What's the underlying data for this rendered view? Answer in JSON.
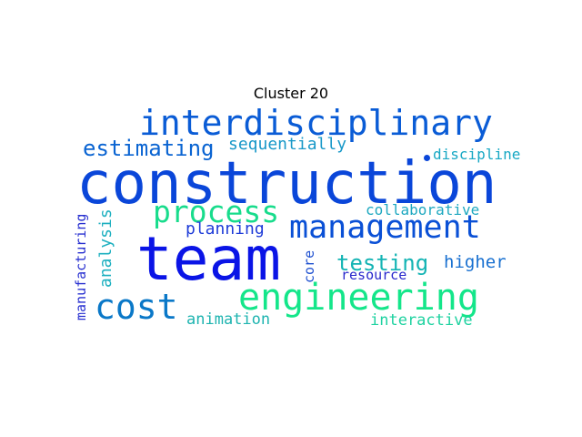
{
  "title": "Cluster 20",
  "words": [
    {
      "text": "construction",
      "color": "#0a46d9",
      "vertical": false
    },
    {
      "text": "team",
      "color": "#0a14e6",
      "vertical": false
    },
    {
      "text": "interdisciplinary",
      "color": "#0a5cd6",
      "vertical": false
    },
    {
      "text": "engineering",
      "color": "#14e68a",
      "vertical": false
    },
    {
      "text": "management",
      "color": "#0a50d6",
      "vertical": false
    },
    {
      "text": "process",
      "color": "#18dc8c",
      "vertical": false
    },
    {
      "text": "cost",
      "color": "#0a78c8",
      "vertical": false
    },
    {
      "text": "estimating",
      "color": "#0a64d2",
      "vertical": false
    },
    {
      "text": "sequentially",
      "color": "#1898c8",
      "vertical": false
    },
    {
      "text": "testing",
      "color": "#14b4b4",
      "vertical": false
    },
    {
      "text": "higher",
      "color": "#1870d0",
      "vertical": false
    },
    {
      "text": "planning",
      "color": "#1e3cd8",
      "vertical": false
    },
    {
      "text": "discipline",
      "color": "#18a8c4",
      "vertical": false
    },
    {
      "text": "collaborative",
      "color": "#1ea8c0",
      "vertical": false
    },
    {
      "text": "animation",
      "color": "#1eb4b0",
      "vertical": false
    },
    {
      "text": "interactive",
      "color": "#1ed2a0",
      "vertical": false
    },
    {
      "text": "resource",
      "color": "#2828cc",
      "vertical": false
    },
    {
      "text": "analysis",
      "color": "#1eb0c0",
      "vertical": true
    },
    {
      "text": "manufacturing",
      "color": "#2830d0",
      "vertical": true
    },
    {
      "text": "core",
      "color": "#1e50d0",
      "vertical": true
    }
  ]
}
